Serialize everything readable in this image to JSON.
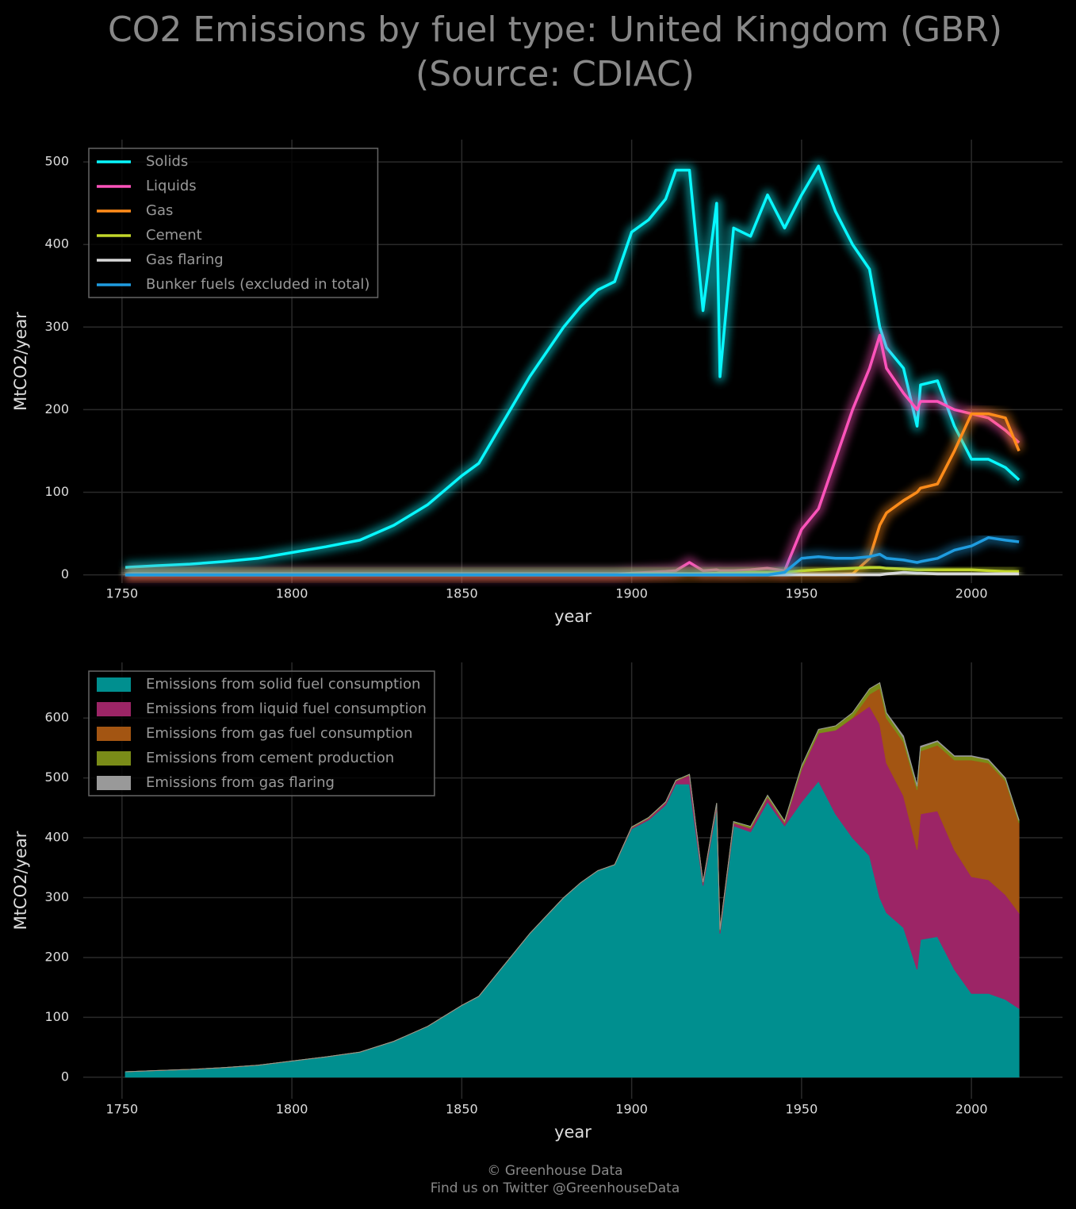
{
  "title": [
    "CO2 Emissions by fuel type: United Kingdom (GBR)",
    "(Source: CDIAC)"
  ],
  "footer": [
    "© Greenhouse Data",
    "Find us on Twitter @GreenhouseData"
  ],
  "chart_data": [
    {
      "type": "line",
      "x_label": "year",
      "y_label": "MtCO2/year",
      "x": [
        1751,
        1760,
        1770,
        1780,
        1790,
        1800,
        1810,
        1820,
        1830,
        1840,
        1850,
        1855,
        1860,
        1865,
        1870,
        1875,
        1880,
        1885,
        1890,
        1895,
        1900,
        1905,
        1910,
        1913,
        1917,
        1921,
        1925,
        1926,
        1930,
        1935,
        1940,
        1945,
        1950,
        1955,
        1960,
        1965,
        1970,
        1973,
        1975,
        1980,
        1984,
        1985,
        1990,
        1995,
        2000,
        2005,
        2010,
        2014
      ],
      "xlim": [
        1738.6,
        2026.8
      ],
      "xticks": [
        1750,
        1800,
        1850,
        1900,
        1950,
        2000
      ],
      "ylim": [
        -10,
        527
      ],
      "yticks": [
        0,
        100,
        200,
        300,
        400,
        500
      ],
      "grid": true,
      "legend": "upper left",
      "series": [
        {
          "name": "Solids",
          "color": "#08f7fe",
          "values": [
            9,
            11,
            13,
            16,
            20,
            27,
            34,
            42,
            60,
            85,
            120,
            135,
            170,
            205,
            240,
            270,
            300,
            325,
            345,
            355,
            415,
            430,
            455,
            490,
            490,
            320,
            450,
            240,
            420,
            410,
            460,
            420,
            460,
            495,
            440,
            400,
            370,
            300,
            275,
            250,
            180,
            230,
            235,
            180,
            140,
            140,
            130,
            115
          ]
        },
        {
          "name": "Liquids",
          "color": "#fe53bb",
          "values": [
            0,
            0,
            0,
            0,
            0,
            0,
            0,
            0,
            0,
            0,
            0,
            0,
            0,
            0,
            0,
            0,
            0,
            0,
            0,
            0,
            2,
            3,
            4,
            5,
            15,
            5,
            6,
            5,
            5,
            6,
            8,
            5,
            55,
            80,
            140,
            200,
            250,
            290,
            250,
            220,
            200,
            210,
            210,
            200,
            195,
            190,
            175,
            160
          ]
        },
        {
          "name": "Gas",
          "color": "#ff8c1a",
          "values": [
            0,
            0,
            0,
            0,
            0,
            0,
            0,
            0,
            0,
            0,
            0,
            0,
            0,
            0,
            0,
            0,
            0,
            0,
            0,
            0,
            0,
            0,
            0,
            0,
            0,
            0,
            0,
            0,
            0,
            0,
            0,
            0,
            0,
            0,
            0,
            1,
            20,
            60,
            75,
            90,
            100,
            105,
            110,
            150,
            195,
            195,
            190,
            150
          ]
        },
        {
          "name": "Cement",
          "color": "#c2d62a",
          "values": [
            0,
            0,
            0,
            0,
            0,
            0,
            0,
            0,
            0,
            0,
            0,
            0,
            0,
            0,
            0,
            0,
            0,
            0,
            0,
            0,
            1,
            1,
            1,
            1,
            1,
            1,
            2,
            2,
            2,
            3,
            3,
            3,
            5,
            6,
            7,
            8,
            9,
            9,
            8,
            7,
            6,
            6,
            6,
            6,
            6,
            5,
            4,
            4
          ]
        },
        {
          "name": "Gas flaring",
          "color": "#d8d8d8",
          "values": [
            0,
            0,
            0,
            0,
            0,
            0,
            0,
            0,
            0,
            0,
            0,
            0,
            0,
            0,
            0,
            0,
            0,
            0,
            0,
            0,
            0,
            0,
            0,
            0,
            0,
            0,
            0,
            0,
            0,
            0,
            0,
            0,
            0,
            0,
            0,
            0,
            0,
            0,
            1,
            3,
            2,
            2,
            1,
            1,
            1,
            1,
            1,
            1
          ]
        },
        {
          "name": "Bunker fuels (excluded in total)",
          "color": "#1f9ce0",
          "values": [
            0,
            0,
            0,
            0,
            0,
            0,
            0,
            0,
            0,
            0,
            0,
            0,
            0,
            0,
            0,
            0,
            0,
            0,
            0,
            0,
            0,
            0,
            0,
            0,
            0,
            0,
            0,
            0,
            0,
            0,
            0,
            3,
            20,
            22,
            20,
            20,
            22,
            25,
            20,
            18,
            15,
            16,
            20,
            30,
            35,
            45,
            42,
            40
          ]
        }
      ]
    },
    {
      "type": "stacked_area",
      "x_label": "year",
      "y_label": "MtCO2/year",
      "x": [
        1751,
        1760,
        1770,
        1780,
        1790,
        1800,
        1810,
        1820,
        1830,
        1840,
        1850,
        1855,
        1860,
        1865,
        1870,
        1875,
        1880,
        1885,
        1890,
        1895,
        1900,
        1905,
        1910,
        1913,
        1917,
        1921,
        1925,
        1926,
        1930,
        1935,
        1940,
        1945,
        1950,
        1955,
        1960,
        1965,
        1970,
        1973,
        1975,
        1980,
        1984,
        1985,
        1990,
        1995,
        2000,
        2005,
        2010,
        2014
      ],
      "xlim": [
        1738.6,
        2026.8
      ],
      "xticks": [
        1750,
        1800,
        1850,
        1900,
        1950,
        2000
      ],
      "ylim": [
        -36,
        693
      ],
      "yticks": [
        0,
        100,
        200,
        300,
        400,
        500,
        600
      ],
      "grid": true,
      "legend": "upper left",
      "series": [
        {
          "name": "Emissions from solid fuel consumption",
          "color": "#008f8f",
          "values": [
            9,
            11,
            13,
            16,
            20,
            27,
            34,
            42,
            60,
            85,
            120,
            135,
            170,
            205,
            240,
            270,
            300,
            325,
            345,
            355,
            415,
            430,
            455,
            490,
            490,
            320,
            450,
            240,
            420,
            410,
            460,
            420,
            460,
            495,
            440,
            400,
            370,
            300,
            275,
            250,
            180,
            230,
            235,
            180,
            140,
            140,
            130,
            115
          ]
        },
        {
          "name": "Emissions from liquid fuel consumption",
          "color": "#9c2566",
          "values": [
            0,
            0,
            0,
            0,
            0,
            0,
            0,
            0,
            0,
            0,
            0,
            0,
            0,
            0,
            0,
            0,
            0,
            0,
            0,
            0,
            2,
            3,
            4,
            5,
            15,
            5,
            6,
            5,
            5,
            6,
            8,
            5,
            55,
            80,
            140,
            200,
            250,
            290,
            250,
            220,
            200,
            210,
            210,
            200,
            195,
            190,
            175,
            160
          ]
        },
        {
          "name": "Emissions from gas fuel consumption",
          "color": "#a35512",
          "values": [
            0,
            0,
            0,
            0,
            0,
            0,
            0,
            0,
            0,
            0,
            0,
            0,
            0,
            0,
            0,
            0,
            0,
            0,
            0,
            0,
            0,
            0,
            0,
            0,
            0,
            0,
            0,
            0,
            0,
            0,
            0,
            0,
            0,
            0,
            0,
            1,
            20,
            60,
            75,
            90,
            100,
            105,
            110,
            150,
            195,
            195,
            190,
            150
          ]
        },
        {
          "name": "Emissions from cement production",
          "color": "#7a8c18",
          "values": [
            0,
            0,
            0,
            0,
            0,
            0,
            0,
            0,
            0,
            0,
            0,
            0,
            0,
            0,
            0,
            0,
            0,
            0,
            0,
            0,
            1,
            1,
            1,
            1,
            1,
            1,
            2,
            2,
            2,
            3,
            3,
            3,
            5,
            6,
            7,
            8,
            9,
            9,
            8,
            7,
            6,
            6,
            6,
            6,
            6,
            5,
            4,
            4
          ]
        },
        {
          "name": "Emissions from gas flaring",
          "color": "#999999",
          "values": [
            0,
            0,
            0,
            0,
            0,
            0,
            0,
            0,
            0,
            0,
            0,
            0,
            0,
            0,
            0,
            0,
            0,
            0,
            0,
            0,
            0,
            0,
            0,
            0,
            0,
            0,
            0,
            0,
            0,
            0,
            0,
            0,
            0,
            0,
            0,
            0,
            0,
            0,
            1,
            3,
            2,
            2,
            1,
            1,
            1,
            1,
            1,
            1
          ]
        }
      ]
    }
  ]
}
